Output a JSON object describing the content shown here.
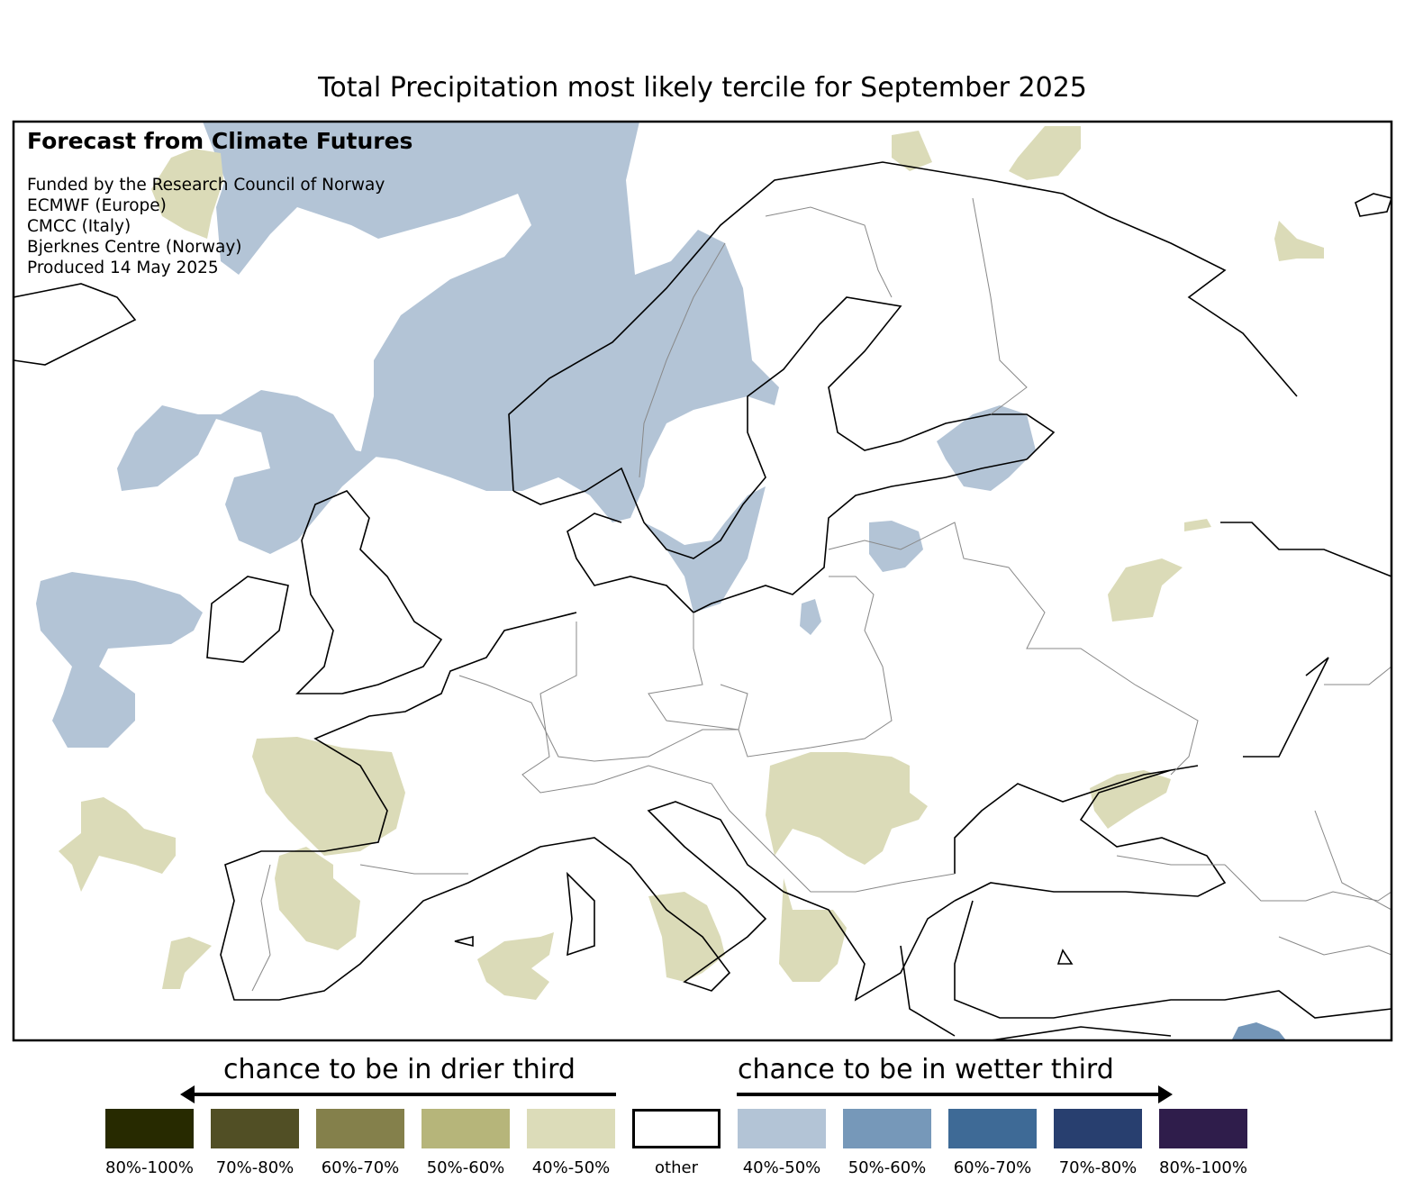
{
  "title": "Total Precipitation most likely tercile for September 2025",
  "info": {
    "heading": "Forecast from Climate Futures",
    "lines": [
      "Funded by the Research Council of Norway",
      "ECMWF (Europe)",
      "CMCC (Italy)",
      "Bjerknes Centre (Norway)",
      "Produced 14 May 2025"
    ]
  },
  "legend": {
    "drier_title": "chance to be in drier third",
    "wetter_title": "chance to be in wetter third",
    "items": [
      {
        "label": "80%-100%",
        "color": "#272a00"
      },
      {
        "label": "70%-80%",
        "color": "#514f25"
      },
      {
        "label": "60%-70%",
        "color": "#84804b"
      },
      {
        "label": "50%-60%",
        "color": "#b6b57a"
      },
      {
        "label": "40%-50%",
        "color": "#dcdcb9"
      },
      {
        "label": "other",
        "color": "#ffffff"
      },
      {
        "label": "40%-50%",
        "color": "#b3c4d6"
      },
      {
        "label": "50%-60%",
        "color": "#7698b9"
      },
      {
        "label": "60%-70%",
        "color": "#3e6a96"
      },
      {
        "label": "70%-80%",
        "color": "#283f6f"
      },
      {
        "label": "80%-100%",
        "color": "#2f1d4b"
      }
    ]
  }
}
